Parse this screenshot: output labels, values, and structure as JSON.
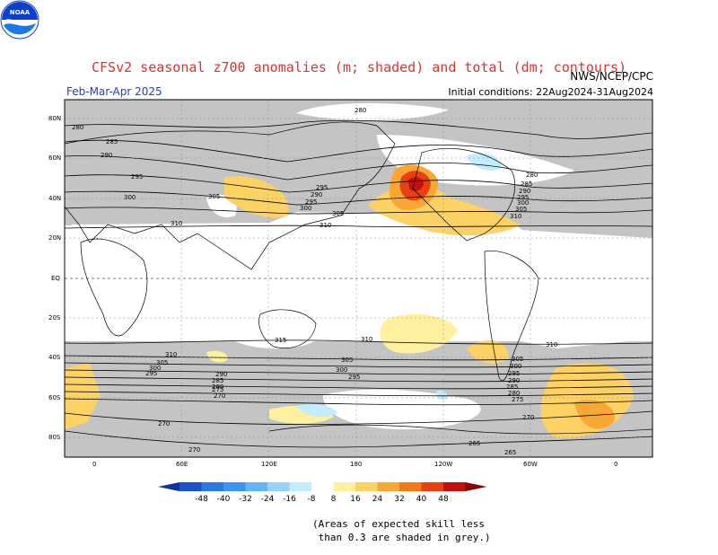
{
  "header": {
    "title": "CFSv2 seasonal z700 anomalies (m; shaded) and total (dm; contours)",
    "agency": "NWS/NCEP/CPC",
    "season": "Feb-Mar-Apr 2025",
    "initial_conditions": "Initial conditions: 22Aug2024-31Aug2024",
    "logo_text": "NOAA"
  },
  "map": {
    "lat_labels": [
      "80N",
      "60N",
      "40N",
      "20N",
      "EQ",
      "20S",
      "40S",
      "60S",
      "80S"
    ],
    "lon_labels": [
      "0",
      "60E",
      "120E",
      "180",
      "120W",
      "60W",
      "0"
    ],
    "contour_labels": {
      "north": [
        "280",
        "285",
        "290",
        "295",
        "300",
        "305",
        "310"
      ],
      "south": [
        "315",
        "310",
        "305",
        "300",
        "295",
        "290",
        "285",
        "280",
        "275",
        "270",
        "265"
      ]
    }
  },
  "legend": {
    "ticks": [
      "-48",
      "-40",
      "-32",
      "-24",
      "-16",
      "-8",
      "8",
      "16",
      "24",
      "32",
      "40",
      "48"
    ],
    "colors": {
      "neg": [
        "#1e50c8",
        "#2a78e0",
        "#3c96f0",
        "#64b4f8",
        "#96d2fa",
        "#c2ecff"
      ],
      "pos": [
        "#fff0a0",
        "#fcd264",
        "#f8a832",
        "#f27818",
        "#e84010",
        "#c01010"
      ],
      "arrow_neg": "#0a32a0",
      "arrow_pos": "#8c0000"
    }
  },
  "note": "(Areas of expected skill less\n than 0.3 are shaded in grey.)"
}
